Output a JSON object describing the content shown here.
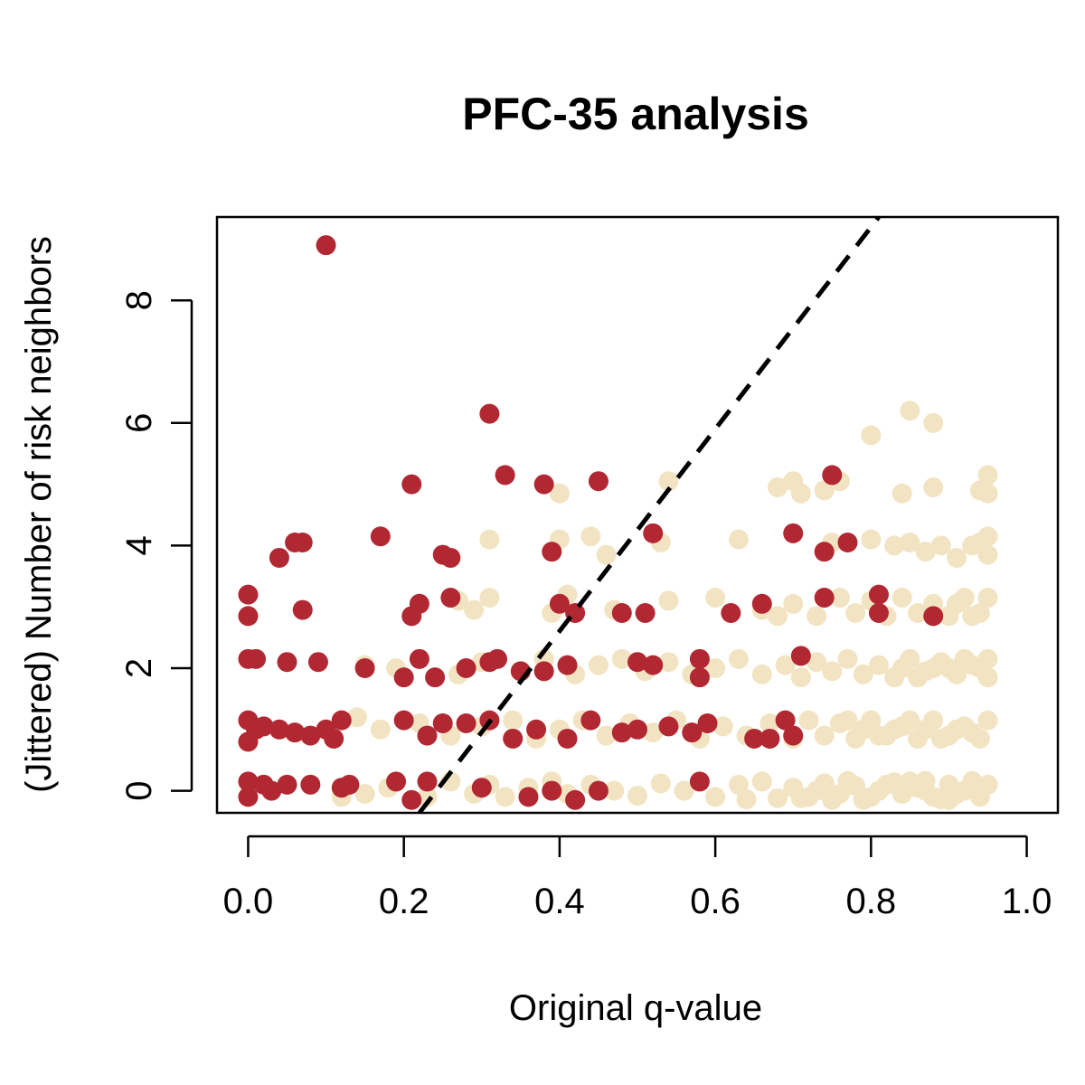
{
  "chart_data": {
    "type": "scatter",
    "title": "PFC-35 analysis",
    "xlabel": "Original q-value",
    "ylabel": "(Jittered) Number of risk neighbors",
    "xlim": [
      -0.04,
      1.04
    ],
    "ylim": [
      -0.36,
      9.36
    ],
    "x_ticks": [
      "0.0",
      "0.2",
      "0.4",
      "0.6",
      "0.8",
      "1.0"
    ],
    "y_ticks": [
      "0",
      "2",
      "4",
      "6",
      "8"
    ],
    "grid": false,
    "legend": "none",
    "colors": {
      "risk": "#B22832",
      "other": "#F2E4C2"
    },
    "reference_line": {
      "style": "dashed",
      "color": "#000000",
      "p1": [
        0.22,
        -0.36
      ],
      "p2": [
        0.81,
        9.36
      ]
    },
    "series": [
      {
        "color_key": "other",
        "points": [
          [
            0.12,
            -0.1
          ],
          [
            0.15,
            -0.05
          ],
          [
            0.18,
            0.05
          ],
          [
            0.23,
            -0.1
          ],
          [
            0.26,
            0.15
          ],
          [
            0.29,
            -0.05
          ],
          [
            0.31,
            0.1
          ],
          [
            0.33,
            -0.1
          ],
          [
            0.36,
            0.05
          ],
          [
            0.39,
            0.15
          ],
          [
            0.41,
            -0.05
          ],
          [
            0.44,
            0.1
          ],
          [
            0.47,
            0.0
          ],
          [
            0.5,
            -0.08
          ],
          [
            0.53,
            0.12
          ],
          [
            0.56,
            0.0
          ],
          [
            0.6,
            -0.1
          ],
          [
            0.63,
            0.1
          ],
          [
            0.66,
            0.15
          ],
          [
            0.68,
            -0.12
          ],
          [
            0.7,
            0.05
          ],
          [
            0.72,
            -0.1
          ],
          [
            0.74,
            0.12
          ],
          [
            0.76,
            -0.05
          ],
          [
            0.78,
            0.08
          ],
          [
            0.8,
            -0.1
          ],
          [
            0.82,
            0.1
          ],
          [
            0.84,
            -0.05
          ],
          [
            0.86,
            0.05
          ],
          [
            0.88,
            -0.1
          ],
          [
            0.9,
            0.1
          ],
          [
            0.92,
            0.0
          ],
          [
            0.94,
            -0.1
          ],
          [
            0.95,
            0.1
          ],
          [
            0.71,
            -0.12
          ],
          [
            0.83,
            0.14
          ],
          [
            0.89,
            -0.14
          ],
          [
            0.93,
            0.16
          ],
          [
            0.77,
            0.16
          ],
          [
            0.87,
            0.0
          ],
          [
            0.91,
            -0.05
          ],
          [
            0.79,
            -0.15
          ],
          [
            0.85,
            0.15
          ],
          [
            0.64,
            -0.14
          ],
          [
            0.73,
            0.0
          ],
          [
            0.81,
            0.0
          ],
          [
            0.94,
            0.05
          ],
          [
            0.9,
            -0.15
          ],
          [
            0.87,
            0.16
          ],
          [
            0.75,
            -0.15
          ],
          [
            0.14,
            1.2
          ],
          [
            0.17,
            1.0
          ],
          [
            0.22,
            1.1
          ],
          [
            0.26,
            0.9
          ],
          [
            0.3,
            1.05
          ],
          [
            0.34,
            1.15
          ],
          [
            0.37,
            0.85
          ],
          [
            0.4,
            1.0
          ],
          [
            0.43,
            1.15
          ],
          [
            0.46,
            0.9
          ],
          [
            0.49,
            1.1
          ],
          [
            0.52,
            0.95
          ],
          [
            0.55,
            1.15
          ],
          [
            0.58,
            0.85
          ],
          [
            0.61,
            1.05
          ],
          [
            0.64,
            0.9
          ],
          [
            0.67,
            1.1
          ],
          [
            0.7,
            0.85
          ],
          [
            0.72,
            1.15
          ],
          [
            0.74,
            0.9
          ],
          [
            0.76,
            1.1
          ],
          [
            0.78,
            0.85
          ],
          [
            0.8,
            1.15
          ],
          [
            0.82,
            0.9
          ],
          [
            0.84,
            1.05
          ],
          [
            0.86,
            0.85
          ],
          [
            0.88,
            1.15
          ],
          [
            0.9,
            0.9
          ],
          [
            0.92,
            1.05
          ],
          [
            0.94,
            0.85
          ],
          [
            0.95,
            1.15
          ],
          [
            0.79,
            1.0
          ],
          [
            0.83,
            1.0
          ],
          [
            0.87,
            1.0
          ],
          [
            0.91,
            1.0
          ],
          [
            0.93,
            0.95
          ],
          [
            0.81,
            0.9
          ],
          [
            0.85,
            1.15
          ],
          [
            0.89,
            0.85
          ],
          [
            0.77,
            1.15
          ],
          [
            0.15,
            2.05
          ],
          [
            0.19,
            2.0
          ],
          [
            0.27,
            1.9
          ],
          [
            0.3,
            2.1
          ],
          [
            0.35,
            1.95
          ],
          [
            0.38,
            2.15
          ],
          [
            0.42,
            1.9
          ],
          [
            0.45,
            2.05
          ],
          [
            0.48,
            2.15
          ],
          [
            0.51,
            1.95
          ],
          [
            0.54,
            2.1
          ],
          [
            0.57,
            1.9
          ],
          [
            0.6,
            2.0
          ],
          [
            0.63,
            2.15
          ],
          [
            0.66,
            1.9
          ],
          [
            0.69,
            2.05
          ],
          [
            0.71,
            1.85
          ],
          [
            0.73,
            2.1
          ],
          [
            0.75,
            1.95
          ],
          [
            0.77,
            2.15
          ],
          [
            0.79,
            1.9
          ],
          [
            0.81,
            2.05
          ],
          [
            0.83,
            1.85
          ],
          [
            0.85,
            2.15
          ],
          [
            0.87,
            1.95
          ],
          [
            0.89,
            2.1
          ],
          [
            0.91,
            1.9
          ],
          [
            0.93,
            2.05
          ],
          [
            0.95,
            1.85
          ],
          [
            0.95,
            2.15
          ],
          [
            0.88,
            2.0
          ],
          [
            0.92,
            2.15
          ],
          [
            0.9,
            2.0
          ],
          [
            0.94,
            2.0
          ],
          [
            0.86,
            1.85
          ],
          [
            0.84,
            2.0
          ],
          [
            0.27,
            3.1
          ],
          [
            0.29,
            2.95
          ],
          [
            0.31,
            3.15
          ],
          [
            0.39,
            2.9
          ],
          [
            0.41,
            3.2
          ],
          [
            0.47,
            2.95
          ],
          [
            0.54,
            3.1
          ],
          [
            0.6,
            3.15
          ],
          [
            0.66,
            2.95
          ],
          [
            0.68,
            2.85
          ],
          [
            0.7,
            3.05
          ],
          [
            0.73,
            2.85
          ],
          [
            0.76,
            3.15
          ],
          [
            0.78,
            2.9
          ],
          [
            0.8,
            3.1
          ],
          [
            0.82,
            2.85
          ],
          [
            0.84,
            3.15
          ],
          [
            0.86,
            2.9
          ],
          [
            0.88,
            3.05
          ],
          [
            0.9,
            2.85
          ],
          [
            0.92,
            3.15
          ],
          [
            0.94,
            2.9
          ],
          [
            0.95,
            3.15
          ],
          [
            0.93,
            2.85
          ],
          [
            0.91,
            3.05
          ],
          [
            0.31,
            4.1
          ],
          [
            0.4,
            4.1
          ],
          [
            0.44,
            4.15
          ],
          [
            0.46,
            3.85
          ],
          [
            0.53,
            4.05
          ],
          [
            0.63,
            4.1
          ],
          [
            0.75,
            4.05
          ],
          [
            0.8,
            4.1
          ],
          [
            0.83,
            4.0
          ],
          [
            0.85,
            4.05
          ],
          [
            0.87,
            3.9
          ],
          [
            0.89,
            4.0
          ],
          [
            0.91,
            3.8
          ],
          [
            0.93,
            4.0
          ],
          [
            0.95,
            4.15
          ],
          [
            0.95,
            3.85
          ],
          [
            0.94,
            4.05
          ],
          [
            0.4,
            4.85
          ],
          [
            0.54,
            5.05
          ],
          [
            0.68,
            4.95
          ],
          [
            0.7,
            5.05
          ],
          [
            0.71,
            4.85
          ],
          [
            0.74,
            4.9
          ],
          [
            0.76,
            5.05
          ],
          [
            0.84,
            4.85
          ],
          [
            0.88,
            4.95
          ],
          [
            0.94,
            4.9
          ],
          [
            0.95,
            5.15
          ],
          [
            0.95,
            4.85
          ],
          [
            0.8,
            5.8
          ],
          [
            0.85,
            6.2
          ],
          [
            0.88,
            6.0
          ]
        ]
      },
      {
        "color_key": "risk",
        "points": [
          [
            0.0,
            -0.1
          ],
          [
            0.0,
            0.15
          ],
          [
            0.02,
            0.1
          ],
          [
            0.03,
            0.0
          ],
          [
            0.05,
            0.1
          ],
          [
            0.08,
            0.1
          ],
          [
            0.12,
            0.05
          ],
          [
            0.13,
            0.1
          ],
          [
            0.19,
            0.15
          ],
          [
            0.21,
            -0.15
          ],
          [
            0.23,
            0.15
          ],
          [
            0.3,
            0.05
          ],
          [
            0.36,
            -0.1
          ],
          [
            0.39,
            0.0
          ],
          [
            0.42,
            -0.15
          ],
          [
            0.45,
            0.0
          ],
          [
            0.58,
            0.15
          ],
          [
            0.0,
            0.8
          ],
          [
            0.0,
            1.15
          ],
          [
            0.01,
            1.0
          ],
          [
            0.02,
            1.05
          ],
          [
            0.04,
            1.0
          ],
          [
            0.06,
            0.95
          ],
          [
            0.08,
            0.9
          ],
          [
            0.1,
            1.0
          ],
          [
            0.11,
            0.85
          ],
          [
            0.12,
            1.15
          ],
          [
            0.2,
            1.15
          ],
          [
            0.23,
            0.9
          ],
          [
            0.25,
            1.1
          ],
          [
            0.28,
            1.1
          ],
          [
            0.31,
            1.15
          ],
          [
            0.34,
            0.85
          ],
          [
            0.37,
            1.0
          ],
          [
            0.41,
            0.85
          ],
          [
            0.44,
            1.15
          ],
          [
            0.48,
            0.95
          ],
          [
            0.5,
            1.0
          ],
          [
            0.54,
            1.05
          ],
          [
            0.57,
            0.95
          ],
          [
            0.59,
            1.1
          ],
          [
            0.65,
            0.85
          ],
          [
            0.67,
            0.85
          ],
          [
            0.69,
            1.15
          ],
          [
            0.7,
            0.9
          ],
          [
            0.0,
            2.15
          ],
          [
            0.01,
            2.15
          ],
          [
            0.05,
            2.1
          ],
          [
            0.09,
            2.1
          ],
          [
            0.15,
            2.0
          ],
          [
            0.2,
            1.85
          ],
          [
            0.22,
            2.15
          ],
          [
            0.24,
            1.85
          ],
          [
            0.28,
            2.0
          ],
          [
            0.31,
            2.1
          ],
          [
            0.32,
            2.15
          ],
          [
            0.35,
            1.95
          ],
          [
            0.38,
            1.95
          ],
          [
            0.41,
            2.05
          ],
          [
            0.5,
            2.1
          ],
          [
            0.52,
            2.05
          ],
          [
            0.58,
            2.15
          ],
          [
            0.58,
            1.85
          ],
          [
            0.71,
            2.2
          ],
          [
            0.0,
            3.2
          ],
          [
            0.0,
            2.85
          ],
          [
            0.07,
            2.95
          ],
          [
            0.21,
            2.85
          ],
          [
            0.22,
            3.05
          ],
          [
            0.26,
            3.15
          ],
          [
            0.4,
            3.05
          ],
          [
            0.42,
            2.9
          ],
          [
            0.48,
            2.9
          ],
          [
            0.51,
            2.9
          ],
          [
            0.62,
            2.9
          ],
          [
            0.66,
            3.05
          ],
          [
            0.74,
            3.15
          ],
          [
            0.81,
            3.2
          ],
          [
            0.81,
            2.9
          ],
          [
            0.88,
            2.85
          ],
          [
            0.04,
            3.8
          ],
          [
            0.06,
            4.05
          ],
          [
            0.07,
            4.05
          ],
          [
            0.17,
            4.15
          ],
          [
            0.25,
            3.85
          ],
          [
            0.26,
            3.8
          ],
          [
            0.39,
            3.9
          ],
          [
            0.52,
            4.2
          ],
          [
            0.7,
            4.2
          ],
          [
            0.74,
            3.9
          ],
          [
            0.77,
            4.05
          ],
          [
            0.21,
            5.0
          ],
          [
            0.33,
            5.15
          ],
          [
            0.38,
            5.0
          ],
          [
            0.45,
            5.05
          ],
          [
            0.75,
            5.15
          ],
          [
            0.31,
            6.15
          ],
          [
            0.1,
            8.9
          ]
        ]
      }
    ]
  }
}
